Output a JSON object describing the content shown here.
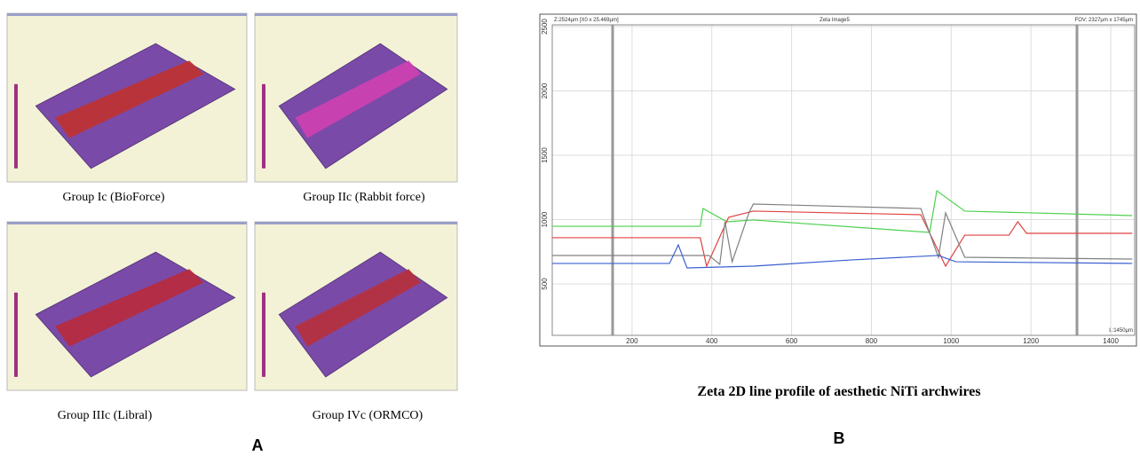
{
  "panel_a": {
    "label": "A",
    "images": [
      {
        "caption": "Group Ic (BioForce)"
      },
      {
        "caption": "Group IIc (Rabbit force)"
      },
      {
        "caption": "Group IIIc (Libral)"
      },
      {
        "caption": "Group IVc (ORMCO)"
      }
    ]
  },
  "panel_b": {
    "label": "B",
    "caption": "Zeta 2D line profile of aesthetic NiTi archwires",
    "header_left": "Z:2524µm [X0 x 25.469µm]",
    "header_center": "Zeta Image5",
    "header_right": "FOV: 2327µm x 1745µm",
    "length_label": "L:1450µm"
  },
  "chart_data": {
    "type": "line",
    "xlim": [
      0,
      1460
    ],
    "ylim": [
      100,
      2514
    ],
    "xticks": [
      200,
      400,
      600,
      800,
      1000,
      1200,
      1400
    ],
    "yticks": [
      500,
      1000,
      1500,
      2000,
      2500
    ],
    "grid": true,
    "series": [
      {
        "color": "#4cd04c",
        "x": [
          0,
          371,
          378,
          438,
          504,
          946,
          964,
          1034,
          1454
        ],
        "values": [
          948,
          948,
          1086,
          983,
          997,
          900,
          1224,
          1066,
          1031
        ]
      },
      {
        "color": "#e04040",
        "x": [
          0,
          371,
          387,
          442,
          504,
          924,
          986,
          1034,
          1145,
          1167,
          1189,
          1454
        ],
        "values": [
          859,
          859,
          638,
          1017,
          1066,
          1038,
          638,
          879,
          879,
          983,
          893,
          893
        ]
      },
      {
        "color": "#808080",
        "x": [
          0,
          393,
          420,
          433,
          451,
          493,
          504,
          924,
          968,
          986,
          1034,
          1454
        ],
        "values": [
          721,
          721,
          652,
          983,
          672,
          1052,
          1121,
          1086,
          707,
          1052,
          707,
          693
        ]
      },
      {
        "color": "#3a5fd0",
        "x": [
          0,
          294,
          316,
          338,
          504,
          747,
          968,
          1012,
          1454
        ],
        "values": [
          659,
          659,
          803,
          624,
          638,
          686,
          721,
          672,
          659
        ]
      }
    ]
  }
}
